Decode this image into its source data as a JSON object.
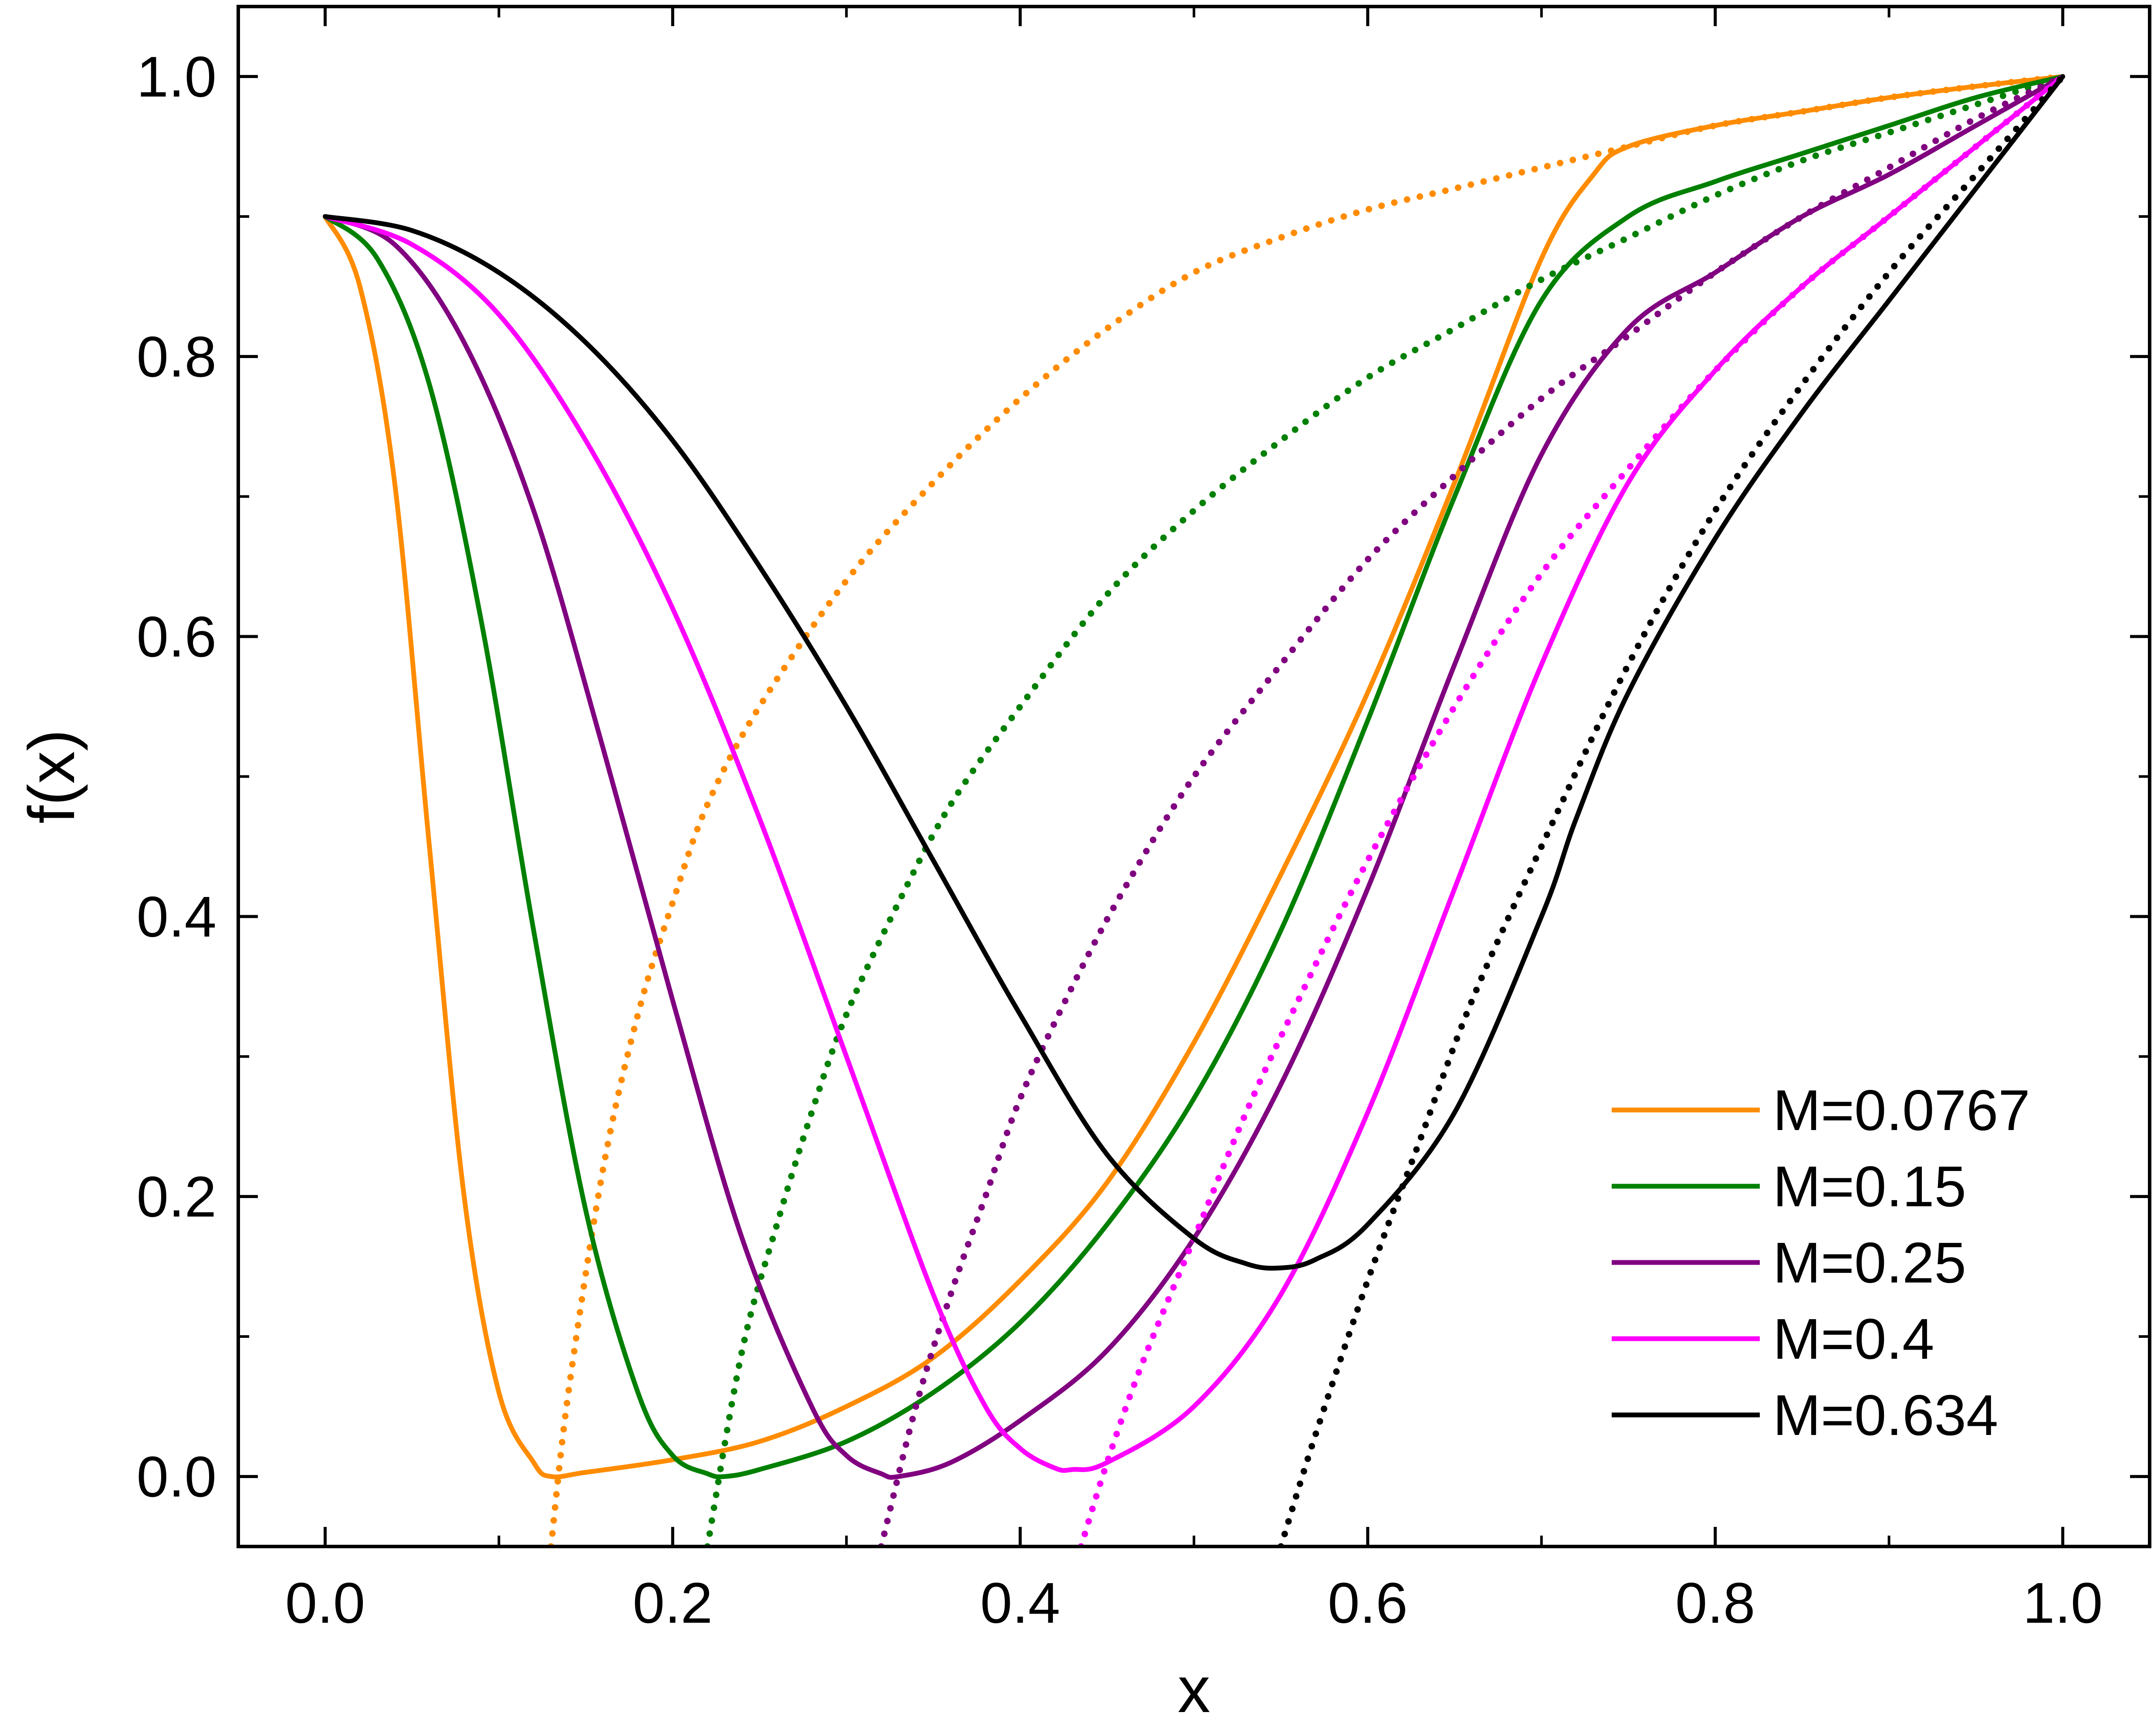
{
  "chart_data": {
    "type": "line",
    "title": "",
    "xlabel": "x",
    "ylabel": "f(x)",
    "xlim": [
      -0.05,
      1.05
    ],
    "ylim": [
      -0.05,
      1.05
    ],
    "xticks": [
      "0.0",
      "0.2",
      "0.4",
      "0.6",
      "0.8",
      "1.0"
    ],
    "yticks": [
      "0.0",
      "0.2",
      "0.4",
      "0.6",
      "0.8",
      "1.0"
    ],
    "grid": false,
    "legend_position": "bottom-right",
    "series": [
      {
        "name": "M=0.0767",
        "color": "#FF8C00",
        "solid": {
          "x": [
            0.0,
            0.02,
            0.04,
            0.06,
            0.08,
            0.1,
            0.12,
            0.13,
            0.15,
            0.2,
            0.25,
            0.3,
            0.35,
            0.4,
            0.45,
            0.5,
            0.55,
            0.6,
            0.65,
            0.7,
            0.73,
            0.75,
            0.8,
            0.85,
            0.9,
            0.95,
            1.0
          ],
          "y": [
            0.9,
            0.85,
            0.71,
            0.45,
            0.2,
            0.06,
            0.01,
            0.0,
            0.003,
            0.012,
            0.025,
            0.05,
            0.085,
            0.14,
            0.21,
            0.31,
            0.43,
            0.56,
            0.71,
            0.87,
            0.93,
            0.95,
            0.965,
            0.975,
            0.985,
            0.993,
            1.0
          ]
        },
        "dotted": {
          "x": [
            0.13,
            0.14,
            0.16,
            0.18,
            0.2,
            0.22,
            0.25,
            0.3,
            0.35,
            0.4,
            0.45,
            0.5,
            0.55,
            0.6,
            0.65,
            0.7,
            0.75,
            0.8,
            0.85,
            0.9,
            0.95,
            1.0
          ],
          "y": [
            -0.05,
            0.06,
            0.22,
            0.33,
            0.41,
            0.48,
            0.55,
            0.64,
            0.71,
            0.77,
            0.82,
            0.86,
            0.885,
            0.905,
            0.92,
            0.935,
            0.95,
            0.965,
            0.975,
            0.985,
            0.993,
            1.0
          ]
        }
      },
      {
        "name": "M=0.15",
        "color": "#008000",
        "solid": {
          "x": [
            0.0,
            0.03,
            0.06,
            0.09,
            0.12,
            0.15,
            0.18,
            0.2,
            0.22,
            0.23,
            0.25,
            0.3,
            0.35,
            0.4,
            0.45,
            0.5,
            0.55,
            0.6,
            0.65,
            0.7,
            0.75,
            0.8,
            0.85,
            0.9,
            0.95,
            1.0
          ],
          "y": [
            0.9,
            0.87,
            0.78,
            0.61,
            0.39,
            0.19,
            0.06,
            0.015,
            0.002,
            0.0,
            0.005,
            0.025,
            0.06,
            0.11,
            0.18,
            0.27,
            0.39,
            0.54,
            0.7,
            0.84,
            0.9,
            0.925,
            0.945,
            0.965,
            0.985,
            1.0
          ]
        },
        "dotted": {
          "x": [
            0.22,
            0.24,
            0.26,
            0.28,
            0.3,
            0.33,
            0.36,
            0.4,
            0.45,
            0.5,
            0.55,
            0.6,
            0.65,
            0.7,
            0.75,
            0.8,
            0.85,
            0.9,
            0.95,
            1.0
          ],
          "y": [
            -0.05,
            0.09,
            0.18,
            0.26,
            0.33,
            0.41,
            0.48,
            0.55,
            0.63,
            0.69,
            0.74,
            0.785,
            0.82,
            0.855,
            0.885,
            0.915,
            0.94,
            0.96,
            0.98,
            1.0
          ]
        }
      },
      {
        "name": "M=0.25",
        "color": "#800080",
        "solid": {
          "x": [
            0.0,
            0.04,
            0.08,
            0.12,
            0.16,
            0.2,
            0.24,
            0.28,
            0.3,
            0.32,
            0.33,
            0.36,
            0.4,
            0.45,
            0.5,
            0.55,
            0.6,
            0.65,
            0.7,
            0.75,
            0.8,
            0.85,
            0.9,
            0.95,
            1.0
          ],
          "y": [
            0.9,
            0.88,
            0.81,
            0.69,
            0.52,
            0.34,
            0.17,
            0.05,
            0.015,
            0.002,
            0.0,
            0.01,
            0.04,
            0.09,
            0.17,
            0.28,
            0.42,
            0.58,
            0.73,
            0.82,
            0.86,
            0.9,
            0.93,
            0.965,
            1.0
          ]
        },
        "dotted": {
          "x": [
            0.32,
            0.34,
            0.36,
            0.38,
            0.4,
            0.43,
            0.46,
            0.5,
            0.55,
            0.6,
            0.65,
            0.7,
            0.75,
            0.8,
            0.85,
            0.9,
            0.95,
            1.0
          ],
          "y": [
            -0.05,
            0.05,
            0.13,
            0.2,
            0.27,
            0.35,
            0.42,
            0.5,
            0.58,
            0.655,
            0.715,
            0.77,
            0.815,
            0.86,
            0.9,
            0.935,
            0.97,
            1.0
          ]
        }
      },
      {
        "name": "M=0.4",
        "color": "#FF00FF",
        "solid": {
          "x": [
            0.0,
            0.05,
            0.1,
            0.15,
            0.2,
            0.25,
            0.3,
            0.35,
            0.38,
            0.4,
            0.42,
            0.43,
            0.45,
            0.5,
            0.55,
            0.6,
            0.65,
            0.7,
            0.75,
            0.8,
            0.85,
            0.9,
            0.95,
            1.0
          ],
          "y": [
            0.9,
            0.88,
            0.83,
            0.74,
            0.62,
            0.47,
            0.3,
            0.13,
            0.05,
            0.02,
            0.006,
            0.005,
            0.01,
            0.05,
            0.13,
            0.26,
            0.42,
            0.58,
            0.71,
            0.79,
            0.85,
            0.9,
            0.95,
            1.0
          ]
        },
        "dotted": {
          "x": [
            0.435,
            0.45,
            0.47,
            0.5,
            0.53,
            0.56,
            0.6,
            0.65,
            0.7,
            0.75,
            0.8,
            0.85,
            0.9,
            0.95,
            1.0
          ],
          "y": [
            -0.05,
            0.01,
            0.08,
            0.17,
            0.26,
            0.34,
            0.44,
            0.55,
            0.645,
            0.72,
            0.79,
            0.85,
            0.9,
            0.95,
            1.0
          ]
        }
      },
      {
        "name": "M=0.634",
        "color": "#000000",
        "solid": {
          "x": [
            0.0,
            0.05,
            0.1,
            0.15,
            0.2,
            0.25,
            0.3,
            0.35,
            0.4,
            0.45,
            0.5,
            0.53,
            0.55,
            0.57,
            0.6,
            0.65,
            0.7,
            0.72,
            0.75,
            0.8,
            0.85,
            0.9,
            0.95,
            1.0
          ],
          "y": [
            0.9,
            0.89,
            0.86,
            0.81,
            0.74,
            0.65,
            0.55,
            0.44,
            0.33,
            0.23,
            0.17,
            0.152,
            0.149,
            0.155,
            0.18,
            0.26,
            0.4,
            0.47,
            0.56,
            0.67,
            0.76,
            0.84,
            0.92,
            1.0
          ]
        },
        "dotted": {
          "x": [
            0.55,
            0.57,
            0.6,
            0.63,
            0.66,
            0.7,
            0.75,
            0.8,
            0.85,
            0.9,
            0.95,
            1.0
          ],
          "y": [
            -0.05,
            0.03,
            0.14,
            0.24,
            0.34,
            0.45,
            0.58,
            0.69,
            0.78,
            0.86,
            0.93,
            1.0
          ]
        }
      }
    ]
  }
}
